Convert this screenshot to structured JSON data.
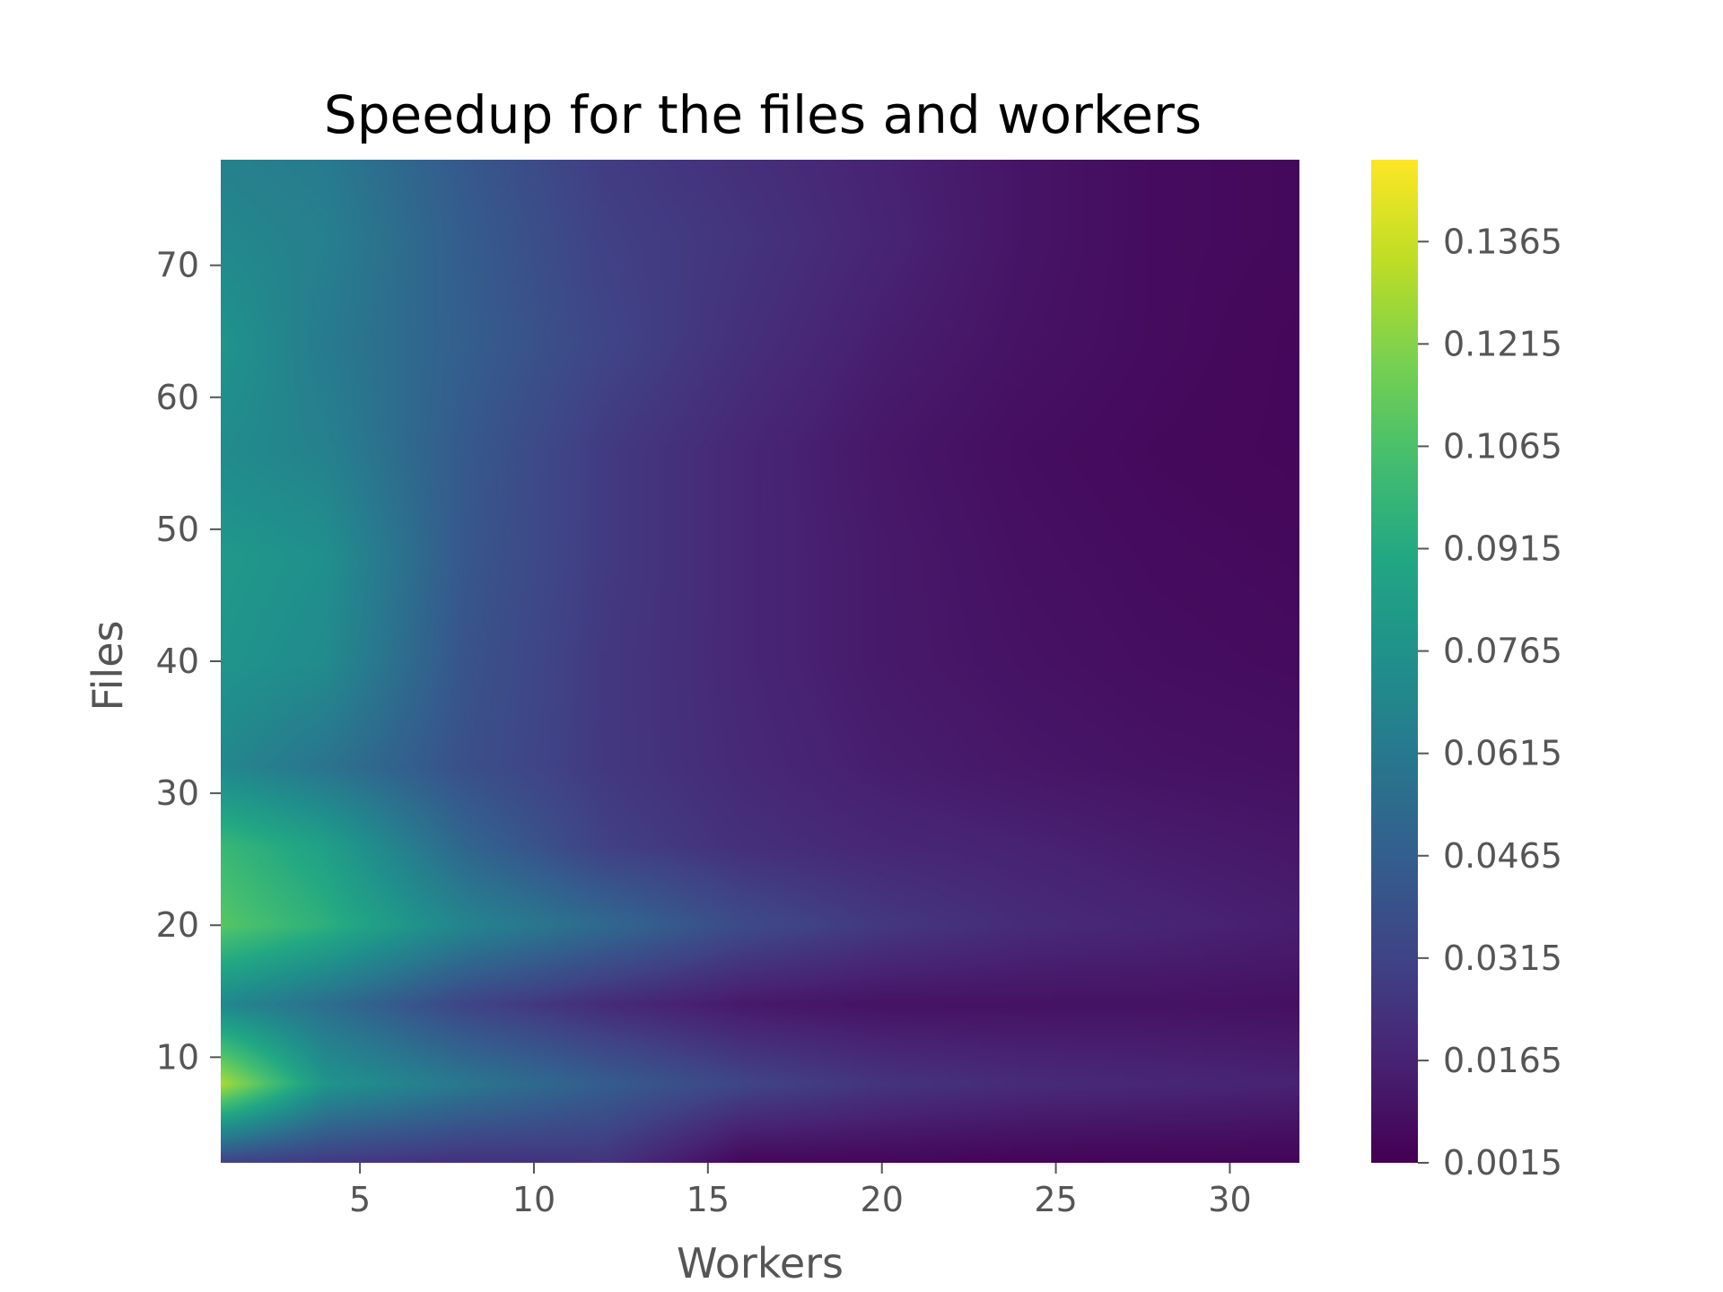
{
  "chart_data": {
    "type": "heatmap",
    "title": "Speedup for the files and workers",
    "xlabel": "Workers",
    "ylabel": "Files",
    "xlim": [
      1,
      32
    ],
    "ylim": [
      2,
      78
    ],
    "x_ticks": [
      5,
      10,
      15,
      20,
      25,
      30
    ],
    "y_ticks": [
      10,
      20,
      30,
      40,
      50,
      60,
      70
    ],
    "colormap": "viridis",
    "colorbar": {
      "range": [
        0.0015,
        0.1485
      ],
      "ticks": [
        "0.0015",
        "0.0165",
        "0.0315",
        "0.0465",
        "0.0615",
        "0.0765",
        "0.0915",
        "0.1065",
        "0.1215",
        "0.1365"
      ]
    },
    "x": [
      1,
      4,
      8,
      12,
      16,
      20,
      24,
      28,
      32
    ],
    "y": [
      2,
      8,
      14,
      20,
      26,
      32,
      40,
      48,
      56,
      64,
      72,
      78
    ],
    "z": [
      [
        0.03,
        0.026,
        0.022,
        0.024,
        0.004,
        0.004,
        0.003,
        0.003,
        0.003
      ],
      [
        0.13,
        0.078,
        0.06,
        0.045,
        0.032,
        0.024,
        0.02,
        0.018,
        0.016
      ],
      [
        0.07,
        0.055,
        0.032,
        0.02,
        0.012,
        0.009,
        0.009,
        0.009,
        0.008
      ],
      [
        0.11,
        0.095,
        0.068,
        0.052,
        0.035,
        0.026,
        0.02,
        0.017,
        0.014
      ],
      [
        0.1,
        0.085,
        0.05,
        0.03,
        0.022,
        0.018,
        0.016,
        0.013,
        0.011
      ],
      [
        0.07,
        0.058,
        0.038,
        0.026,
        0.019,
        0.014,
        0.011,
        0.009,
        0.008
      ],
      [
        0.078,
        0.072,
        0.04,
        0.026,
        0.018,
        0.012,
        0.009,
        0.007,
        0.006
      ],
      [
        0.08,
        0.075,
        0.042,
        0.027,
        0.018,
        0.012,
        0.008,
        0.006,
        0.005
      ],
      [
        0.072,
        0.066,
        0.043,
        0.027,
        0.018,
        0.011,
        0.007,
        0.005,
        0.004
      ],
      [
        0.078,
        0.062,
        0.046,
        0.032,
        0.022,
        0.014,
        0.009,
        0.006,
        0.004
      ],
      [
        0.07,
        0.065,
        0.045,
        0.03,
        0.024,
        0.017,
        0.01,
        0.006,
        0.005
      ],
      [
        0.066,
        0.062,
        0.043,
        0.028,
        0.022,
        0.016,
        0.01,
        0.006,
        0.005
      ]
    ]
  }
}
